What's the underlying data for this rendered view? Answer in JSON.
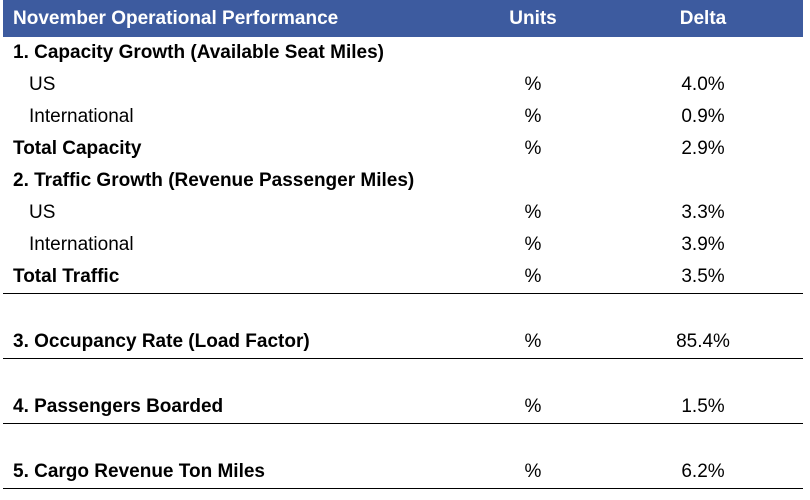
{
  "header": {
    "title": "November Operational Performance",
    "units": "Units",
    "delta": "Delta"
  },
  "rows": [
    {
      "label": "1. Capacity Growth (Available Seat Miles)",
      "units": "",
      "delta": ""
    },
    {
      "label": "US",
      "units": "%",
      "delta": "4.0%"
    },
    {
      "label": "International",
      "units": "%",
      "delta": "0.9%"
    },
    {
      "label": "Total Capacity",
      "units": "%",
      "delta": "2.9%"
    },
    {
      "label": "2. Traffic Growth (Revenue Passenger Miles)",
      "units": "",
      "delta": ""
    },
    {
      "label": "US",
      "units": "%",
      "delta": "3.3%"
    },
    {
      "label": "International",
      "units": "%",
      "delta": "3.9%"
    },
    {
      "label": "Total Traffic",
      "units": "%",
      "delta": "3.5%"
    },
    {
      "label": "3. Occupancy Rate (Load Factor)",
      "units": "%",
      "delta": "85.4%"
    },
    {
      "label": "4. Passengers Boarded",
      "units": "%",
      "delta": "1.5%"
    },
    {
      "label": "5. Cargo Revenue Ton Miles",
      "units": "%",
      "delta": "6.2%"
    }
  ]
}
